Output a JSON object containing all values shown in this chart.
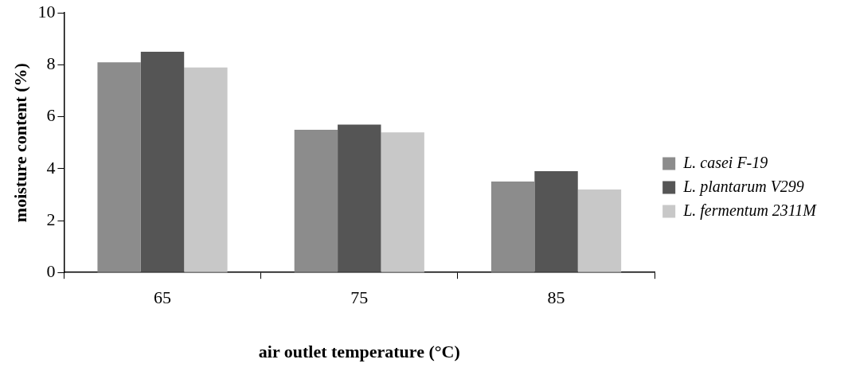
{
  "chart_data": {
    "type": "bar",
    "xlabel": "air outlet temperature (°C)",
    "ylabel": "moisture content (%)",
    "categories": [
      "65",
      "75",
      "85"
    ],
    "series": [
      {
        "name": "L. casei F-19",
        "color": "#8c8c8c",
        "values": [
          8.1,
          5.5,
          3.5
        ]
      },
      {
        "name": "L. plantarum V299",
        "color": "#555555",
        "values": [
          8.5,
          5.7,
          3.9
        ]
      },
      {
        "name": "L. fermentum 2311M",
        "color": "#c8c8c8",
        "values": [
          7.9,
          5.4,
          3.2
        ]
      }
    ],
    "ylim": [
      0,
      10
    ],
    "yticks": [
      0,
      2,
      4,
      6,
      8,
      10
    ],
    "grid": false,
    "legend": "right"
  }
}
